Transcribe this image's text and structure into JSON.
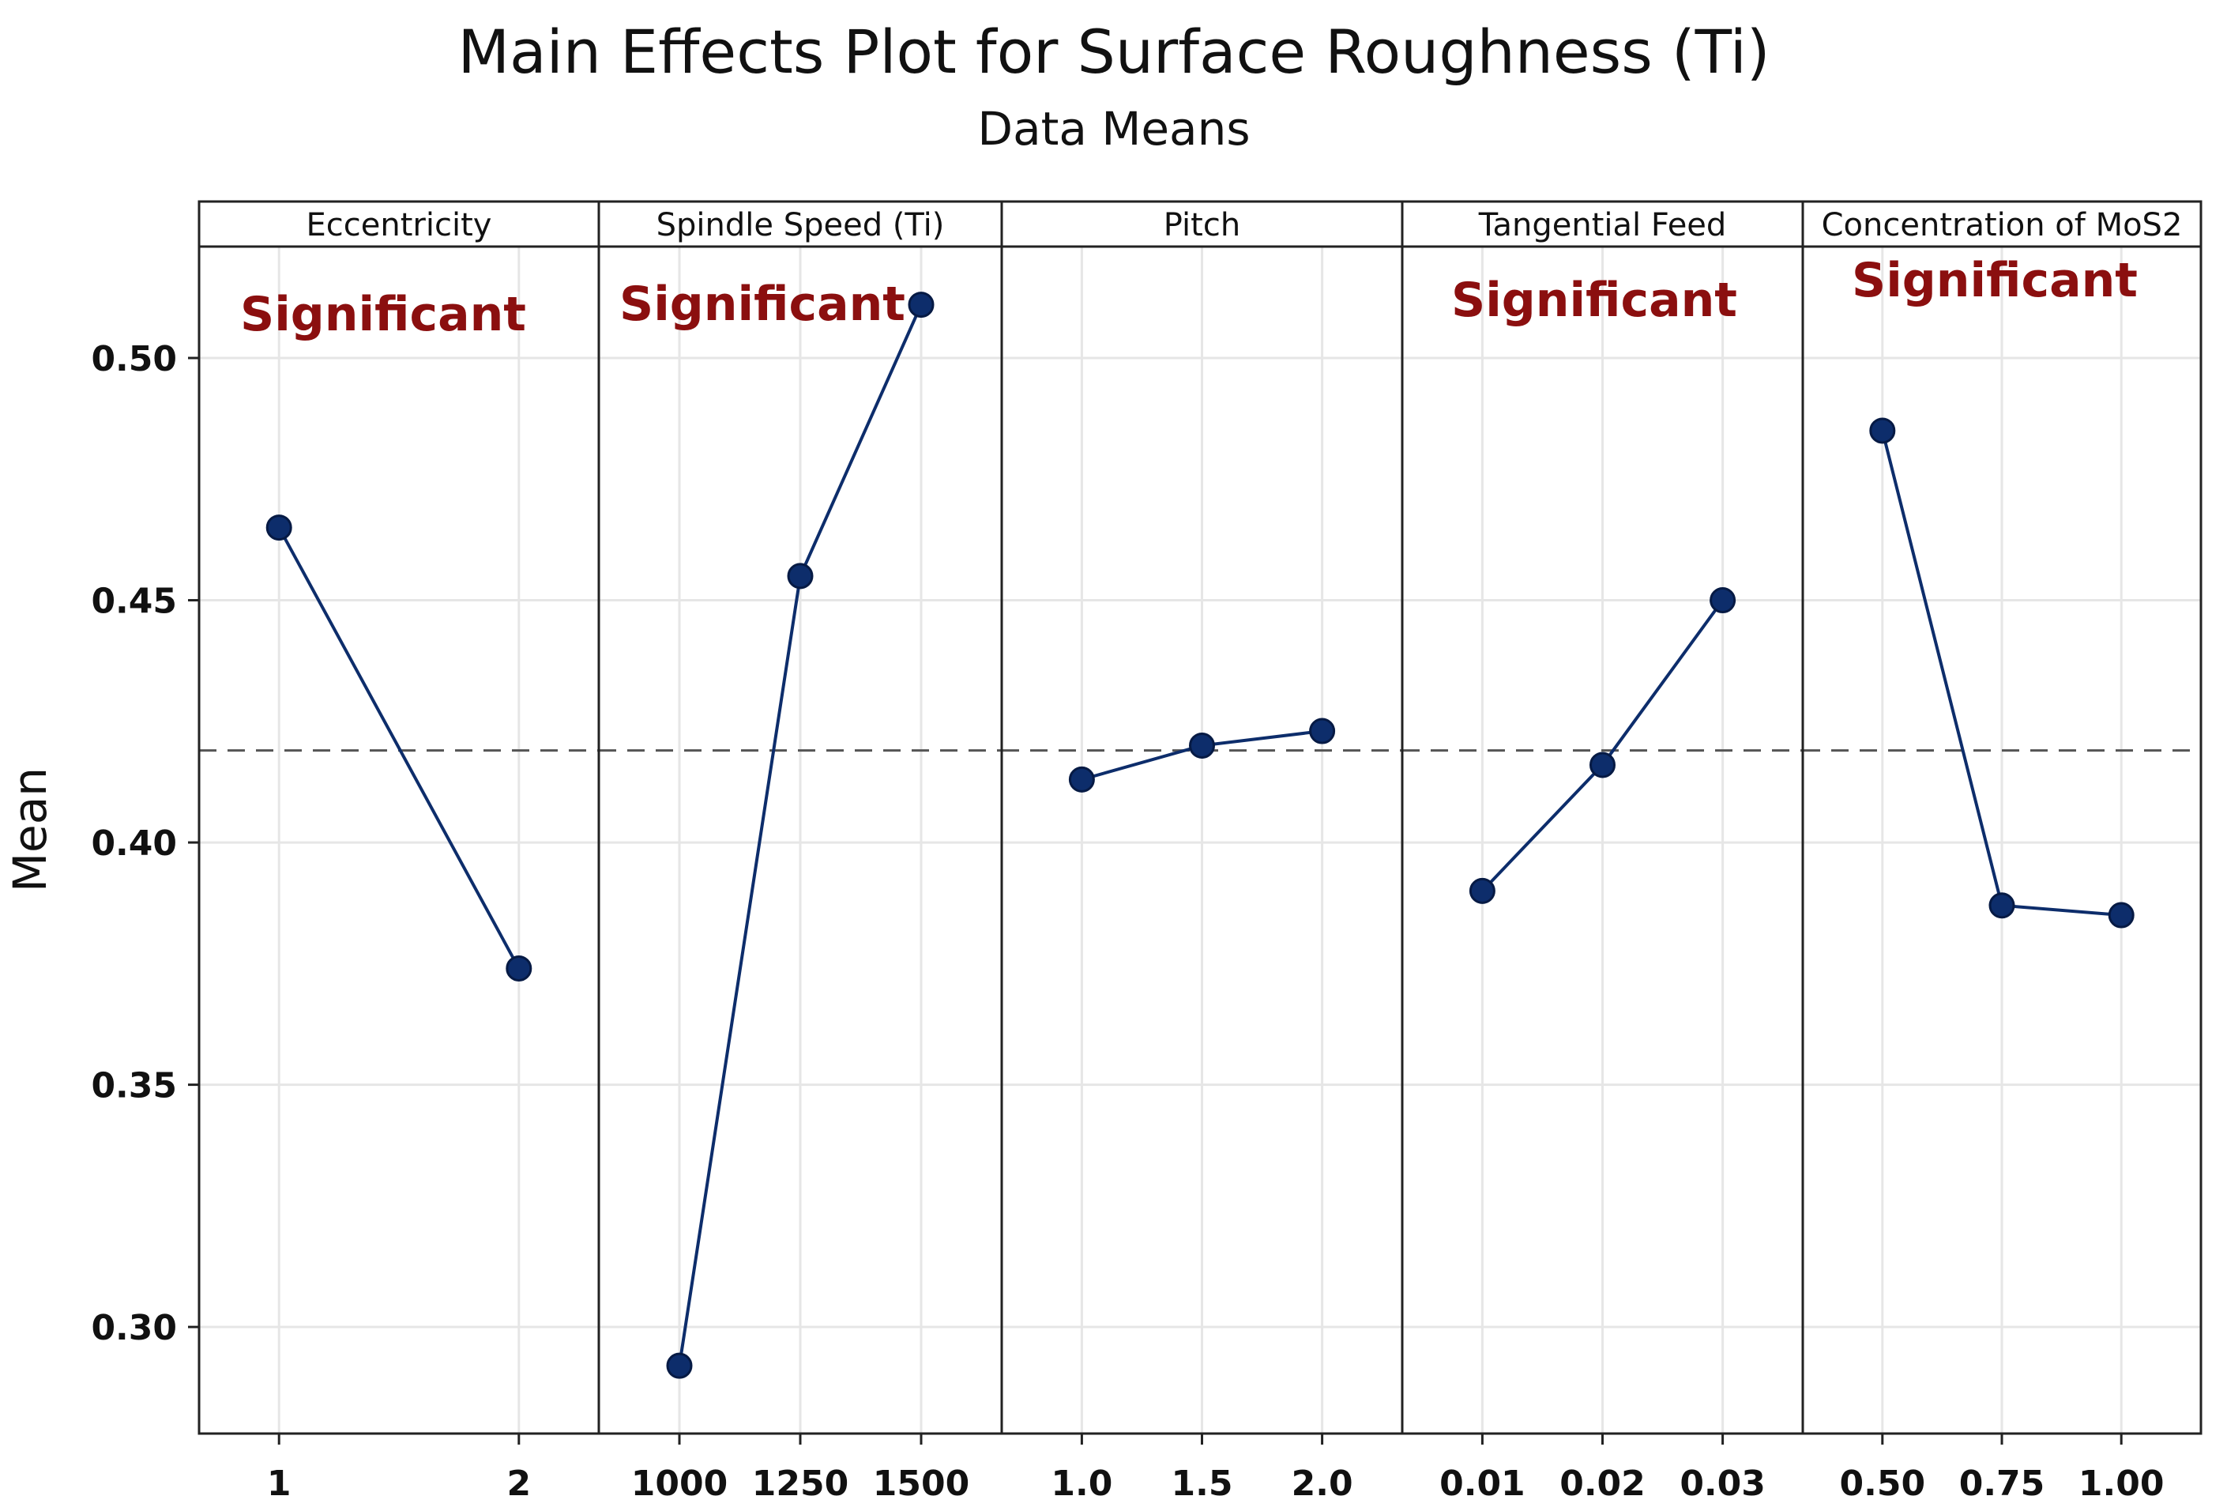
{
  "chart_data": {
    "type": "line",
    "title": "Main Effects Plot for Surface Roughness (Ti)",
    "subtitle": "Data Means",
    "ylabel": "Mean",
    "ylim": [
      0.278,
      0.523
    ],
    "yticks": [
      "0.30",
      "0.35",
      "0.40",
      "0.45",
      "0.50"
    ],
    "grand_mean": 0.419,
    "colors": {
      "line": "#0d2d6b",
      "marker": "#0d2d6b",
      "annotation": "#8b0f0f",
      "grid": "#e6e6e6",
      "reference": "#555555"
    },
    "panels": [
      {
        "factor": "Eccentricity",
        "x": [
          "1",
          "2"
        ],
        "values": [
          0.465,
          0.374
        ],
        "annotation": "Significant"
      },
      {
        "factor": "Spindle Speed (Ti)",
        "x": [
          "1000",
          "1250",
          "1500"
        ],
        "values": [
          0.292,
          0.455,
          0.511
        ],
        "annotation": "Significant"
      },
      {
        "factor": "Pitch",
        "x": [
          "1.0",
          "1.5",
          "2.0"
        ],
        "values": [
          0.413,
          0.42,
          0.423
        ],
        "annotation": ""
      },
      {
        "factor": "Tangential Feed",
        "x": [
          "0.01",
          "0.02",
          "0.03"
        ],
        "values": [
          0.39,
          0.416,
          0.45
        ],
        "annotation": "Significant"
      },
      {
        "factor": "Concentration of MoS2",
        "x": [
          "0.50",
          "0.75",
          "1.00"
        ],
        "values": [
          0.485,
          0.387,
          0.385
        ],
        "annotation": "Significant"
      }
    ]
  }
}
